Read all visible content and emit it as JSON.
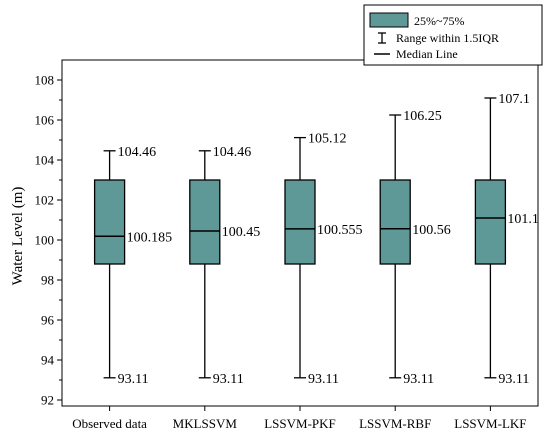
{
  "chart_data": {
    "type": "boxplot",
    "title": "",
    "xlabel": "",
    "ylabel": "Water Level (m)",
    "ylim": [
      91.7,
      109
    ],
    "yticks": [
      92,
      94,
      96,
      98,
      100,
      102,
      104,
      106,
      108
    ],
    "grid": false,
    "legend_position": "top-right",
    "legend": {
      "box": "25%~75%",
      "whisker": "Range within 1.5IQR",
      "median": "Median Line"
    },
    "colors": {
      "box_fill": "#5f9997",
      "stroke": "#000000"
    },
    "categories": [
      "Observed data",
      "MKLSSVM",
      "LSSVM-PKF",
      "LSSVM-RBF",
      "LSSVM-LKF"
    ],
    "boxes": [
      {
        "min": 93.11,
        "q1": 98.8,
        "median": 100.185,
        "q3": 103.0,
        "max": 104.46,
        "max_label": "104.46",
        "median_label": "100.185",
        "min_label": "93.11"
      },
      {
        "min": 93.11,
        "q1": 98.8,
        "median": 100.45,
        "q3": 103.0,
        "max": 104.46,
        "max_label": "104.46",
        "median_label": "100.45",
        "min_label": "93.11"
      },
      {
        "min": 93.11,
        "q1": 98.8,
        "median": 100.555,
        "q3": 103.0,
        "max": 105.12,
        "max_label": "105.12",
        "median_label": "100.555",
        "min_label": "93.11"
      },
      {
        "min": 93.11,
        "q1": 98.8,
        "median": 100.56,
        "q3": 103.0,
        "max": 106.25,
        "max_label": "106.25",
        "median_label": "100.56",
        "min_label": "93.11"
      },
      {
        "min": 93.11,
        "q1": 98.8,
        "median": 101.1,
        "q3": 103.0,
        "max": 107.1,
        "max_label": "107.1",
        "median_label": "101.1",
        "min_label": "93.11"
      }
    ]
  }
}
